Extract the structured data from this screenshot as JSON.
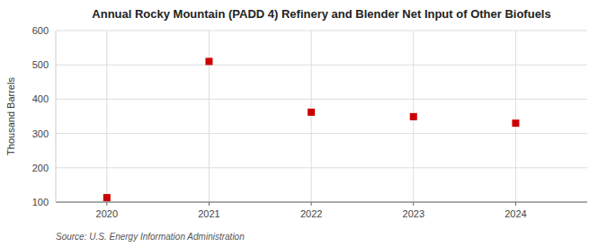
{
  "chart_data": {
    "type": "scatter",
    "title": "Annual Rocky Mountain (PADD 4) Refinery and Blender Net Input of Other Biofuels",
    "y_label": "Thousand Barrels",
    "source": "Source: U.S. Energy Information Administration",
    "x": [
      2020,
      2021,
      2022,
      2023,
      2024
    ],
    "values": [
      113,
      510,
      362,
      349,
      330
    ],
    "xlim": [
      2019.5,
      2024.7
    ],
    "ylim": [
      100,
      600
    ],
    "xticks": [
      2020,
      2021,
      2022,
      2023,
      2024
    ],
    "yticks": [
      100,
      200,
      300,
      400,
      500,
      600
    ],
    "color": "#cc0000",
    "marker": "square",
    "grid": true
  }
}
